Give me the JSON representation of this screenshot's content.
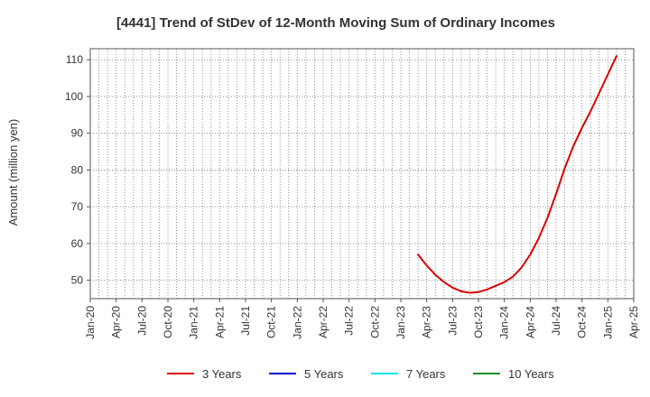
{
  "chart_data": {
    "type": "line",
    "title": "[4441]  Trend of StDev of 12-Month Moving Sum of Ordinary Incomes",
    "ylabel": "Amount (million yen)",
    "xlabel": "",
    "ylim": [
      45,
      113
    ],
    "yticks": [
      50,
      60,
      70,
      80,
      90,
      100,
      110
    ],
    "xticks": [
      "Jan-20",
      "Apr-20",
      "Jul-20",
      "Oct-20",
      "Jan-21",
      "Apr-21",
      "Jul-21",
      "Oct-21",
      "Jan-22",
      "Apr-22",
      "Jul-22",
      "Oct-22",
      "Jan-23",
      "Apr-23",
      "Jul-23",
      "Oct-23",
      "Jan-24",
      "Apr-24",
      "Jul-24",
      "Oct-24",
      "Jan-25",
      "Apr-25"
    ],
    "grid": true,
    "legend_position": "bottom",
    "series": [
      {
        "name": "3 Years",
        "color": "#dd0000",
        "points": [
          [
            "Mar-23",
            57.0
          ],
          [
            "Apr-23",
            54.0
          ],
          [
            "May-23",
            51.5
          ],
          [
            "Jun-23",
            49.5
          ],
          [
            "Jul-23",
            48.0
          ],
          [
            "Aug-23",
            47.0
          ],
          [
            "Sep-23",
            46.6
          ],
          [
            "Oct-23",
            46.8
          ],
          [
            "Nov-23",
            47.5
          ],
          [
            "Dec-23",
            48.5
          ],
          [
            "Jan-24",
            49.5
          ],
          [
            "Feb-24",
            51.0
          ],
          [
            "Mar-24",
            53.5
          ],
          [
            "Apr-24",
            57.0
          ],
          [
            "May-24",
            61.5
          ],
          [
            "Jun-24",
            67.0
          ],
          [
            "Jul-24",
            73.5
          ],
          [
            "Aug-24",
            80.5
          ],
          [
            "Sep-24",
            86.5
          ],
          [
            "Oct-24",
            91.5
          ],
          [
            "Nov-24",
            96.0
          ],
          [
            "Dec-24",
            101.0
          ],
          [
            "Jan-25",
            106.0
          ],
          [
            "Feb-25",
            111.0
          ]
        ]
      },
      {
        "name": "5 Years",
        "color": "#0000cc",
        "points": []
      },
      {
        "name": "7 Years",
        "color": "#00e5ee",
        "points": []
      },
      {
        "name": "10 Years",
        "color": "#228b22",
        "points": []
      }
    ]
  }
}
